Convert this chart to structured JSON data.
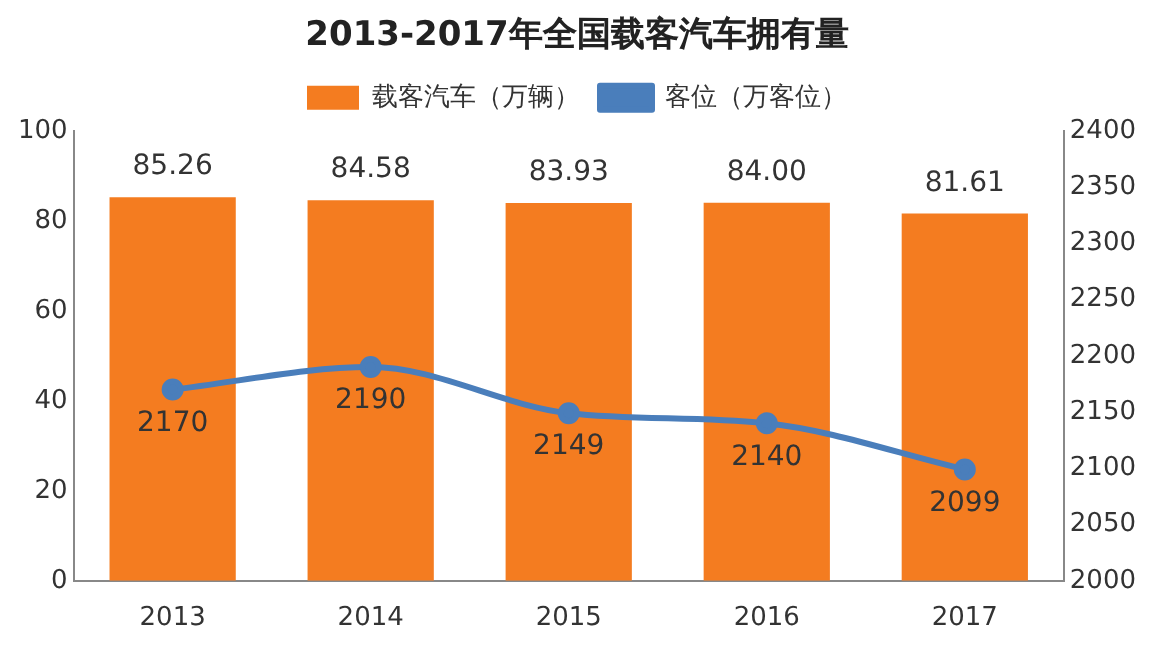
{
  "chart_data": {
    "type": "bar",
    "title": "2013-2017年全国载客汽车拥有量",
    "categories": [
      "2013",
      "2014",
      "2015",
      "2016",
      "2017"
    ],
    "series": [
      {
        "name": "载客汽车（万辆）",
        "color": "#f47c20",
        "values": [
          85.26,
          84.58,
          83.93,
          84.0,
          81.61
        ],
        "value_labels": [
          "85.26",
          "84.58",
          "83.93",
          "84.00",
          "81.61"
        ]
      },
      {
        "name": "客位（万客位）",
        "type": "line",
        "axis": "y2",
        "color": "#4a7ebb",
        "values": [
          2170,
          2190,
          2149,
          2140,
          2099
        ],
        "value_labels": [
          "2170",
          "2190",
          "2149",
          "2140",
          "2099"
        ]
      }
    ],
    "ylim": [
      0,
      100
    ],
    "yticks": [
      0,
      20,
      40,
      60,
      80,
      100
    ],
    "y2lim": [
      2000,
      2400
    ],
    "y2ticks": [
      2000,
      2050,
      2100,
      2150,
      2200,
      2250,
      2300,
      2350,
      2400
    ],
    "legend": "top",
    "marker": "circle",
    "line_style": "solid",
    "grid": false
  }
}
